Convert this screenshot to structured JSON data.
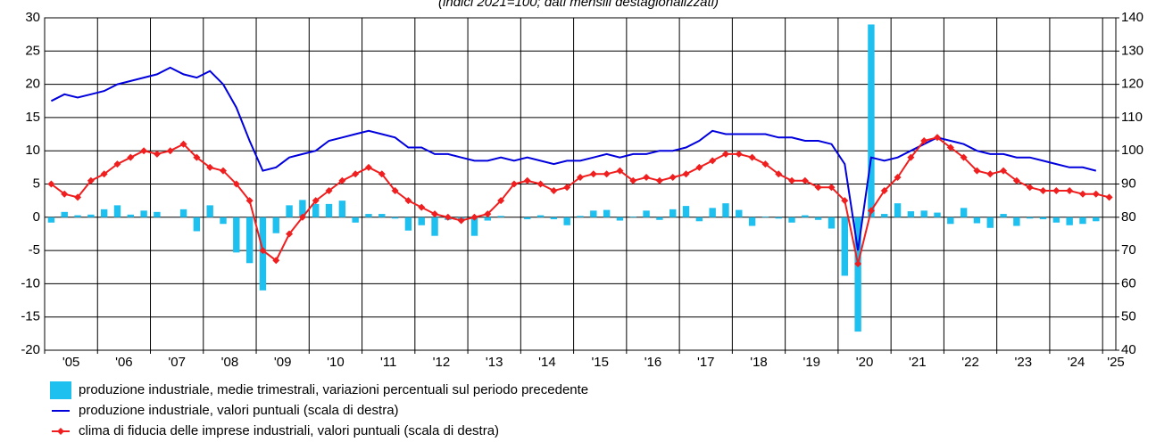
{
  "chart_data": {
    "type": "combo",
    "subtitle": "(indici 2021=100; dati mensili destagionalizzati)",
    "categories": [
      "'05",
      null,
      null,
      null,
      "'06",
      null,
      null,
      null,
      "'07",
      null,
      null,
      null,
      "'08",
      null,
      null,
      null,
      "'09",
      null,
      null,
      null,
      "'10",
      null,
      null,
      null,
      "'11",
      null,
      null,
      null,
      "'12",
      null,
      null,
      null,
      "'13",
      null,
      null,
      null,
      "'14",
      null,
      null,
      null,
      "'15",
      null,
      null,
      null,
      "'16",
      null,
      null,
      null,
      "'17",
      null,
      null,
      null,
      "'18",
      null,
      null,
      null,
      "'19",
      null,
      null,
      null,
      "'20",
      null,
      null,
      null,
      "'21",
      null,
      null,
      null,
      "'22",
      null,
      null,
      null,
      "'23",
      null,
      null,
      null,
      "'24",
      null,
      null,
      null,
      "'25"
    ],
    "ylim": [
      -20,
      30
    ],
    "yticks": [
      -20,
      -15,
      -10,
      -5,
      0,
      5,
      10,
      15,
      20,
      25,
      30
    ],
    "y2lim": [
      40,
      140
    ],
    "y2ticks": [
      40,
      50,
      60,
      70,
      80,
      90,
      100,
      110,
      120,
      130,
      140
    ],
    "grid": true,
    "series": [
      {
        "name": "produzione industriale, medie trimestrali, variazioni percentuali sul periodo precedente",
        "type": "bar",
        "color": "#1ec0ef",
        "axis": "y",
        "values": [
          -0.8,
          0.8,
          0.3,
          0.4,
          1.2,
          1.8,
          0.4,
          1.0,
          0.8,
          0.0,
          1.2,
          -2.1,
          1.8,
          -1.0,
          -5.3,
          -6.9,
          -11.0,
          -2.4,
          1.8,
          2.6,
          2.0,
          2.0,
          2.5,
          -0.8,
          0.5,
          0.5,
          -0.2,
          -2.0,
          -1.2,
          -2.8,
          -0.4,
          -0.3,
          -2.8,
          -0.5,
          0.2,
          0.0,
          -0.3,
          0.3,
          -0.3,
          -1.2,
          0.2,
          1.0,
          1.1,
          -0.5,
          0.1,
          1.0,
          -0.4,
          1.2,
          1.7,
          -0.6,
          1.4,
          2.1,
          1.1,
          -1.3,
          0.1,
          -0.2,
          -0.8,
          0.3,
          -0.4,
          -1.7,
          -8.8,
          -17.2,
          29.0,
          0.5,
          2.1,
          0.9,
          1.0,
          0.7,
          -1.0,
          1.4,
          -0.9,
          -1.6,
          0.5,
          -1.3,
          -0.2,
          -0.3,
          -0.8,
          -1.2,
          -1.0,
          -0.6,
          null
        ]
      },
      {
        "name": "produzione industriale, valori puntuali (scala di destra)",
        "type": "line",
        "color": "#0000dd",
        "axis": "y2",
        "values": [
          115,
          117,
          116,
          117,
          118,
          120,
          121,
          122,
          123,
          125,
          123,
          122,
          124,
          120,
          113,
          103,
          94,
          95,
          98,
          99,
          100,
          103,
          104,
          105,
          106,
          105,
          104,
          101,
          101,
          99,
          99,
          98,
          97,
          97,
          98,
          97,
          98,
          97,
          96,
          97,
          97,
          98,
          99,
          98,
          99,
          99,
          100,
          100,
          101,
          103,
          106,
          105,
          105,
          105,
          105,
          104,
          104,
          103,
          103,
          102,
          96,
          70,
          98,
          97,
          98,
          100,
          102,
          104,
          103,
          102,
          100,
          99,
          99,
          98,
          98,
          97,
          96,
          95,
          95,
          94,
          null
        ]
      },
      {
        "name": "clima di fiducia delle imprese industriali, valori puntuali (scala di destra)",
        "type": "line",
        "marker": "diamond",
        "color": "#f01e1e",
        "axis": "y2",
        "values": [
          90,
          87,
          86,
          91,
          93,
          96,
          98,
          100,
          99,
          100,
          102,
          98,
          95,
          94,
          90,
          85,
          70,
          67,
          75,
          80,
          85,
          88,
          91,
          93,
          95,
          93,
          88,
          85,
          83,
          81,
          80,
          79,
          80,
          81,
          85,
          90,
          91,
          90,
          88,
          89,
          92,
          93,
          93,
          94,
          91,
          92,
          91,
          92,
          93,
          95,
          97,
          99,
          99,
          98,
          96,
          93,
          91,
          91,
          89,
          89,
          85,
          66,
          82,
          88,
          92,
          98,
          103,
          104,
          101,
          98,
          94,
          93,
          94,
          91,
          89,
          88,
          88,
          88,
          87,
          87,
          86
        ]
      }
    ]
  }
}
